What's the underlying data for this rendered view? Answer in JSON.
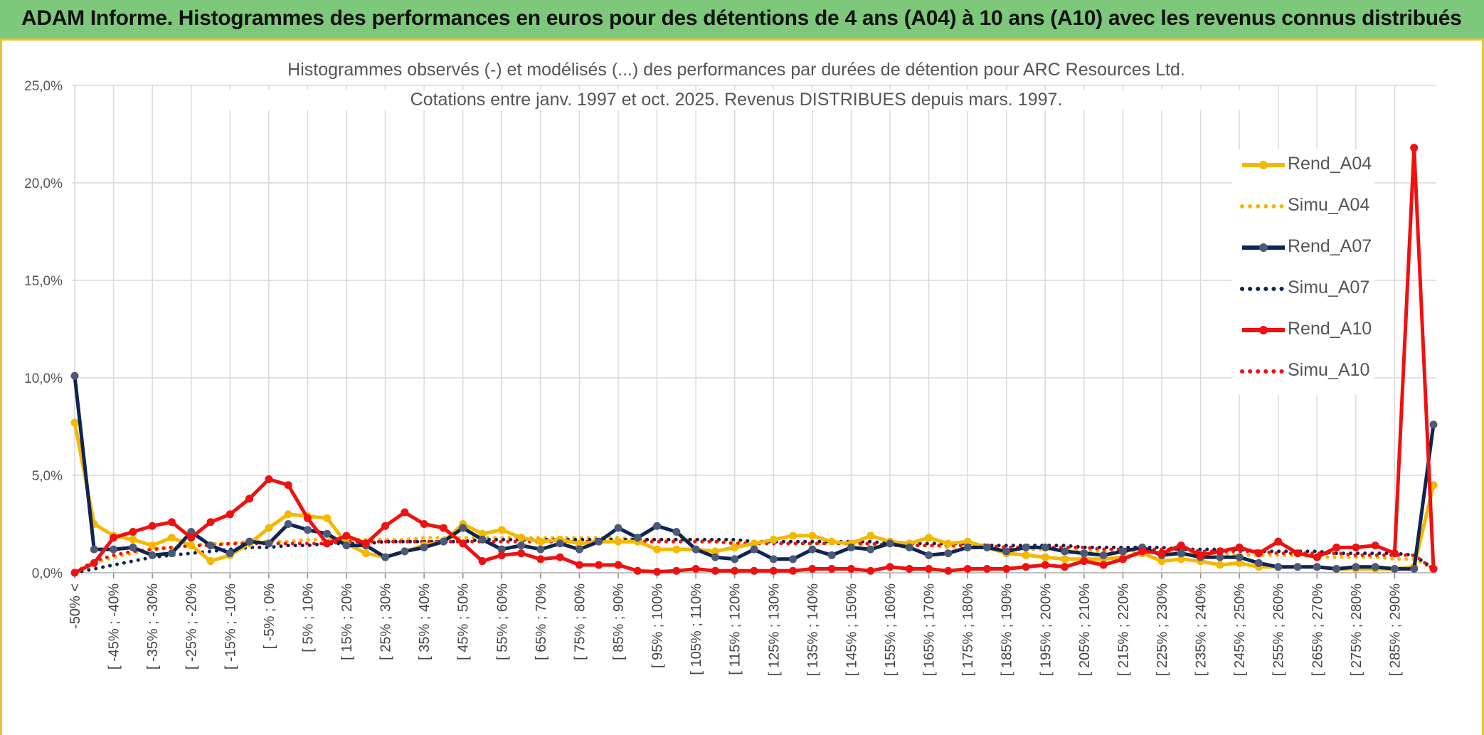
{
  "banner": {
    "title": "ADAM Informe. Histogrammes des performances en euros pour des détentions de 4 ans (A04) à 10 ans (A10) avec les revenus connus distribués"
  },
  "colors": {
    "banner_bg": "#7dc87a",
    "frame_border": "#e8c232",
    "A04": "#f5b800",
    "A07": "#0f2452",
    "A07_marker": "#4a5a78",
    "A10": "#f01010",
    "grid": "#d9d9d9"
  },
  "chart_data": {
    "type": "line",
    "title": "Histogrammes observés (-) et modélisés (...) des performances par durées de détention pour ARC Resources Ltd.",
    "subtitle": "Cotations entre janv. 1997 et oct. 2025. Revenus DISTRIBUES depuis mars. 1997.",
    "xlabel": "",
    "ylabel": "",
    "ylim": [
      0,
      25
    ],
    "y_ticks": [
      "0,0%",
      "5,0%",
      "10,0%",
      "15,0%",
      "20,0%",
      "25,0%"
    ],
    "grid": true,
    "legend_position": "right",
    "categories": [
      "-50% <",
      "[ -50% ; -45%",
      "[ -45% ; -40%",
      "[ -40% ; -35%",
      "[ -35% ; -30%",
      "[ -30% ; -25%",
      "[ -25% ; -20%",
      "[ -20% ; -15%",
      "[ -15% ; -10%",
      "[ -10% ; -5%",
      "[ -5% ; 0%",
      "[ 0% ; 5%",
      "[ 5% ; 10%",
      "[ 10% ; 15%",
      "[ 15% ; 20%",
      "[ 20% ; 25%",
      "[ 25% ; 30%",
      "[ 30% ; 35%",
      "[ 35% ; 40%",
      "[ 40% ; 45%",
      "[ 45% ; 50%",
      "[ 50% ; 55%",
      "[ 55% ; 60%",
      "[ 60% ; 65%",
      "[ 65% ; 70%",
      "[ 70% ; 75%",
      "[ 75% ; 80%",
      "[ 80% ; 85%",
      "[ 85% ; 90%",
      "[ 90% ; 95%",
      "[ 95% ; 100%",
      "[ 100% ; 105%",
      "[ 105% ; 110%",
      "[ 110% ; 115%",
      "[ 115% ; 120%",
      "[ 120% ; 125%",
      "[ 125% ; 130%",
      "[ 130% ; 135%",
      "[ 135% ; 140%",
      "[ 140% ; 145%",
      "[ 145% ; 150%",
      "[ 150% ; 155%",
      "[ 155% ; 160%",
      "[ 160% ; 165%",
      "[ 165% ; 170%",
      "[ 170% ; 175%",
      "[ 175% ; 180%",
      "[ 180% ; 185%",
      "[ 185% ; 190%",
      "[ 190% ; 195%",
      "[ 195% ; 200%",
      "[ 200% ; 205%",
      "[ 205% ; 210%",
      "[ 210% ; 215%",
      "[ 215% ; 220%",
      "[ 220% ; 225%",
      "[ 225% ; 230%",
      "[ 230% ; 235%",
      "[ 235% ; 240%",
      "[ 240% ; 245%",
      "[ 245% ; 250%",
      "[ 250% ; 255%",
      "[ 255% ; 260%",
      "[ 260% ; 265%",
      "[ 265% ; 270%",
      "[ 270% ; 275%",
      "[ 275% ; 280%",
      "[ 280% ; 285%",
      "[ 285% ; 290%",
      "[ 290% ; 295%",
      "295% <"
    ],
    "visible_tick_labels": [
      "-50% <",
      "[ -45% ; -40%",
      "[ -35% ; -30%",
      "[ -25% ; -20%",
      "[ -15% ; -10%",
      "[ -5% ; 0%",
      "[ 5% ; 10%",
      "[ 15% ; 20%",
      "[ 25% ; 30%",
      "[ 35% ; 40%",
      "[ 45% ; 50%",
      "[ 55% ; 60%",
      "[ 65% ; 70%",
      "[ 75% ; 80%",
      "[ 85% ; 90%",
      "[ 95% ; 100%",
      "[ 105% ; 110%",
      "[ 115% ; 120%",
      "[ 125% ; 130%",
      "[ 135% ; 140%",
      "[ 145% ; 150%",
      "[ 155% ; 160%",
      "[ 165% ; 170%",
      "[ 175% ; 180%",
      "[ 185% ; 190%",
      "[ 195% ; 200%",
      "[ 205% ; 210%",
      "[ 215% ; 220%",
      "[ 225% ; 230%",
      "[ 235% ; 240%",
      "[ 245% ; 250%",
      "[ 255% ; 260%",
      "[ 265% ; 270%",
      "[ 275% ; 280%",
      "[ 285% ; 290%"
    ],
    "series": [
      {
        "name": "Rend_A04",
        "style": "solid",
        "color": "#f5b800",
        "values": [
          7.7,
          2.5,
          1.9,
          1.7,
          1.4,
          1.8,
          1.4,
          0.6,
          0.9,
          1.5,
          2.3,
          3.0,
          2.9,
          2.8,
          1.5,
          1.0,
          0.8,
          1.1,
          1.4,
          1.6,
          2.5,
          2.0,
          2.2,
          1.8,
          1.6,
          1.7,
          1.5,
          1.6,
          1.6,
          1.6,
          1.2,
          1.2,
          1.2,
          1.1,
          1.3,
          1.5,
          1.7,
          1.9,
          1.9,
          1.6,
          1.5,
          1.9,
          1.6,
          1.5,
          1.8,
          1.5,
          1.6,
          1.3,
          1.0,
          0.9,
          0.8,
          0.7,
          0.7,
          0.7,
          0.8,
          1.0,
          0.6,
          0.7,
          0.6,
          0.4,
          0.5,
          0.3,
          0.3,
          0.3,
          0.3,
          0.2,
          0.2,
          0.2,
          0.2,
          0.3,
          4.5
        ]
      },
      {
        "name": "Simu_A04",
        "style": "dotted",
        "color": "#f5b800",
        "values": [
          0.1,
          0.5,
          0.8,
          1.0,
          1.2,
          1.3,
          1.4,
          1.5,
          1.5,
          1.6,
          1.6,
          1.6,
          1.7,
          1.7,
          1.7,
          1.7,
          1.7,
          1.7,
          1.8,
          1.8,
          1.8,
          1.8,
          1.8,
          1.8,
          1.8,
          1.8,
          1.8,
          1.8,
          1.8,
          1.7,
          1.7,
          1.7,
          1.7,
          1.6,
          1.6,
          1.6,
          1.6,
          1.5,
          1.5,
          1.5,
          1.5,
          1.4,
          1.4,
          1.4,
          1.4,
          1.3,
          1.3,
          1.3,
          1.3,
          1.2,
          1.2,
          1.2,
          1.1,
          1.1,
          1.1,
          1.1,
          1.0,
          1.0,
          1.0,
          1.0,
          0.9,
          0.9,
          0.9,
          0.9,
          0.8,
          0.8,
          0.8,
          0.8,
          0.7,
          0.7,
          0.2
        ]
      },
      {
        "name": "Rend_A07",
        "style": "solid",
        "color": "#0f2452",
        "values": [
          10.1,
          1.2,
          1.2,
          1.3,
          0.9,
          1.0,
          2.1,
          1.4,
          1.0,
          1.6,
          1.5,
          2.5,
          2.2,
          2.0,
          1.4,
          1.4,
          0.8,
          1.1,
          1.3,
          1.6,
          2.3,
          1.7,
          1.2,
          1.4,
          1.2,
          1.5,
          1.2,
          1.6,
          2.3,
          1.8,
          2.4,
          2.1,
          1.2,
          0.8,
          0.7,
          1.2,
          0.7,
          0.7,
          1.2,
          0.9,
          1.3,
          1.2,
          1.5,
          1.3,
          0.9,
          1.0,
          1.3,
          1.3,
          1.1,
          1.3,
          1.3,
          1.1,
          1.0,
          0.9,
          1.1,
          1.3,
          0.9,
          1.0,
          0.8,
          0.8,
          0.8,
          0.5,
          0.3,
          0.3,
          0.3,
          0.2,
          0.3,
          0.3,
          0.2,
          0.2,
          7.6
        ]
      },
      {
        "name": "Simu_A07",
        "style": "dotted",
        "color": "#0f2452",
        "values": [
          0.0,
          0.2,
          0.4,
          0.6,
          0.8,
          0.9,
          1.0,
          1.1,
          1.2,
          1.3,
          1.3,
          1.4,
          1.4,
          1.5,
          1.5,
          1.5,
          1.6,
          1.6,
          1.6,
          1.6,
          1.6,
          1.7,
          1.7,
          1.7,
          1.7,
          1.7,
          1.7,
          1.7,
          1.7,
          1.7,
          1.7,
          1.7,
          1.7,
          1.7,
          1.7,
          1.6,
          1.6,
          1.6,
          1.6,
          1.6,
          1.6,
          1.6,
          1.5,
          1.5,
          1.5,
          1.5,
          1.5,
          1.4,
          1.4,
          1.4,
          1.4,
          1.4,
          1.3,
          1.3,
          1.3,
          1.3,
          1.3,
          1.2,
          1.2,
          1.2,
          1.2,
          1.1,
          1.1,
          1.1,
          1.1,
          1.0,
          1.0,
          1.0,
          1.0,
          0.9,
          0.2
        ]
      },
      {
        "name": "Rend_A10",
        "style": "solid",
        "color": "#f01010",
        "values": [
          0.0,
          0.5,
          1.8,
          2.1,
          2.4,
          2.6,
          1.8,
          2.6,
          3.0,
          3.8,
          4.8,
          4.5,
          2.8,
          1.5,
          1.9,
          1.5,
          2.4,
          3.1,
          2.5,
          2.3,
          1.5,
          0.6,
          0.9,
          1.0,
          0.7,
          0.8,
          0.4,
          0.4,
          0.4,
          0.1,
          0.05,
          0.1,
          0.2,
          0.1,
          0.1,
          0.1,
          0.1,
          0.1,
          0.2,
          0.2,
          0.2,
          0.1,
          0.3,
          0.2,
          0.2,
          0.1,
          0.2,
          0.2,
          0.2,
          0.3,
          0.4,
          0.3,
          0.6,
          0.4,
          0.7,
          1.1,
          1.0,
          1.4,
          0.9,
          1.1,
          1.3,
          1.0,
          1.6,
          1.0,
          0.8,
          1.3,
          1.3,
          1.4,
          1.0,
          21.8,
          0.2
        ]
      },
      {
        "name": "Simu_A10",
        "style": "dotted",
        "color": "#f01010",
        "values": [
          0.0,
          0.6,
          0.9,
          1.1,
          1.2,
          1.3,
          1.4,
          1.4,
          1.5,
          1.5,
          1.5,
          1.5,
          1.5,
          1.5,
          1.6,
          1.6,
          1.6,
          1.6,
          1.6,
          1.6,
          1.6,
          1.6,
          1.6,
          1.6,
          1.6,
          1.6,
          1.6,
          1.6,
          1.6,
          1.6,
          1.6,
          1.6,
          1.6,
          1.6,
          1.5,
          1.5,
          1.5,
          1.5,
          1.5,
          1.5,
          1.5,
          1.5,
          1.4,
          1.4,
          1.4,
          1.4,
          1.4,
          1.4,
          1.3,
          1.3,
          1.3,
          1.3,
          1.3,
          1.2,
          1.2,
          1.2,
          1.2,
          1.2,
          1.1,
          1.1,
          1.1,
          1.1,
          1.0,
          1.0,
          1.0,
          1.0,
          0.9,
          0.9,
          0.9,
          0.9,
          0.2
        ]
      }
    ]
  }
}
